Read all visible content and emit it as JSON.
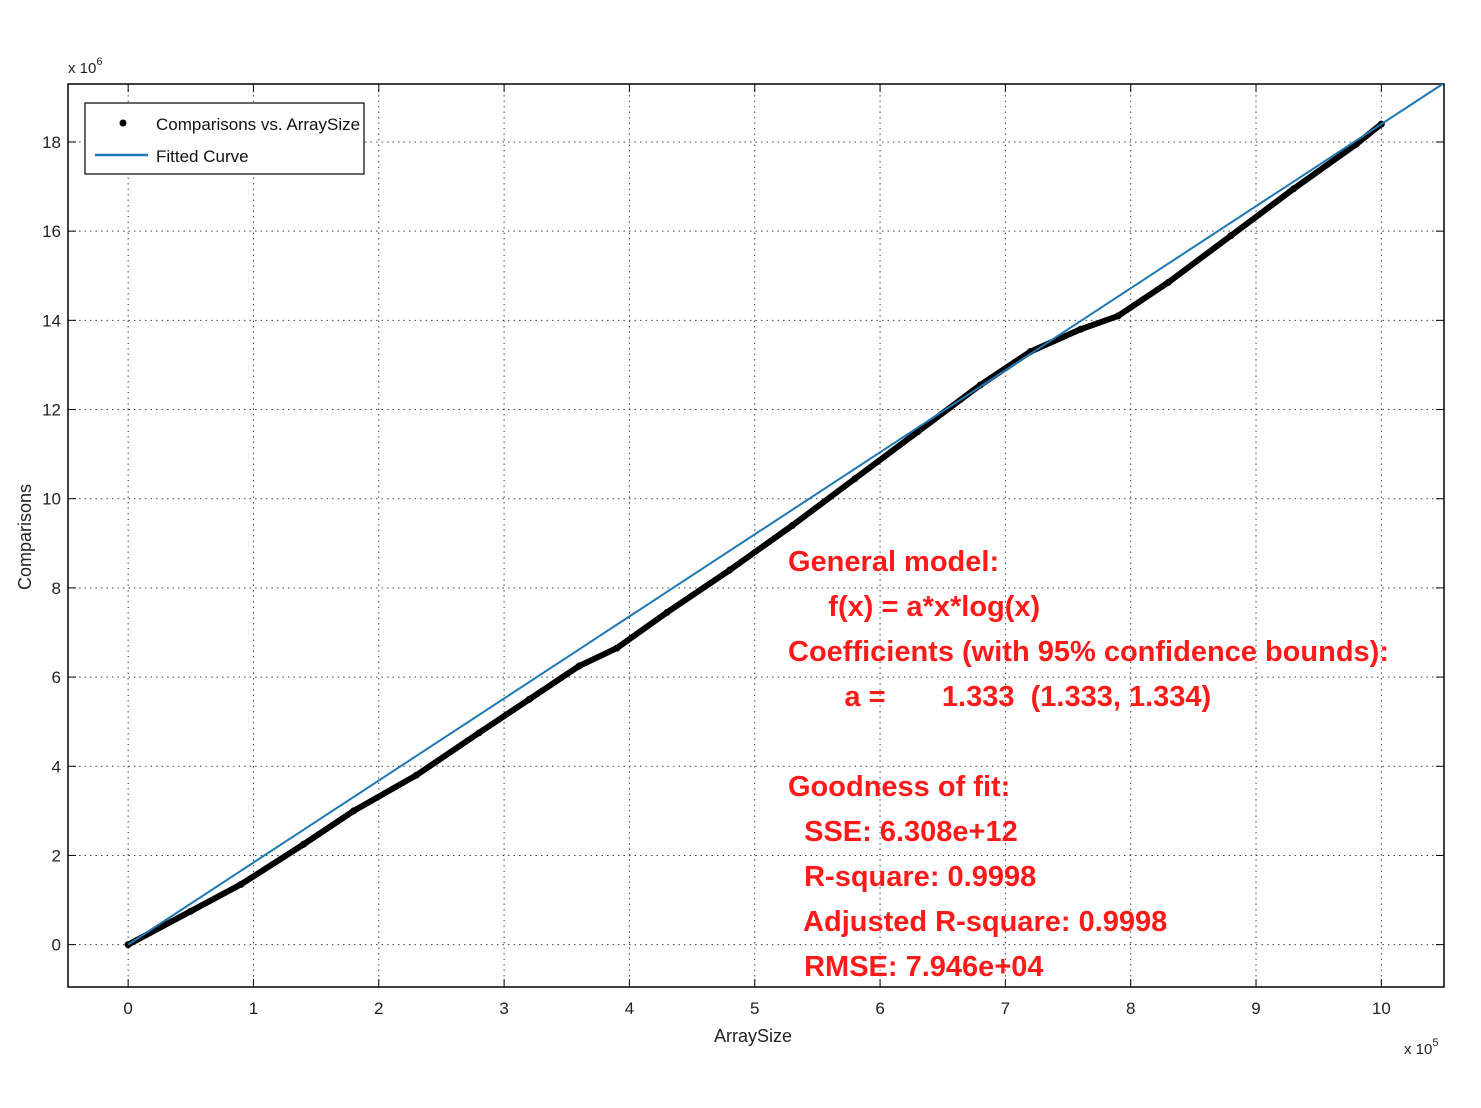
{
  "chart_data": {
    "type": "line",
    "xlabel": "ArraySize",
    "ylabel": "Comparisons",
    "x_multiplier": {
      "base": "x 10",
      "exponent": "5"
    },
    "y_multiplier": {
      "base": "x 10",
      "exponent": "6"
    },
    "xlim": [
      -0.48,
      10.5
    ],
    "ylim": [
      -0.95,
      19.3
    ],
    "x_ticks": [
      "0",
      "1",
      "2",
      "3",
      "4",
      "5",
      "6",
      "7",
      "8",
      "9",
      "10"
    ],
    "y_ticks": [
      "0",
      "2",
      "4",
      "6",
      "8",
      "10",
      "12",
      "14",
      "16",
      "18"
    ],
    "grid": true,
    "legend_position": "top-left",
    "series": [
      {
        "name": "Comparisons vs. ArraySize",
        "style": "markers",
        "color": "#000000",
        "x": [
          0,
          0.5,
          0.9,
          1.4,
          1.8,
          2.3,
          2.8,
          3.2,
          3.6,
          3.9,
          4.3,
          4.8,
          5.3,
          5.8,
          6.3,
          6.8,
          7.2,
          7.6,
          7.9,
          8.3,
          8.8,
          9.3,
          9.8,
          10
        ],
        "y": [
          0,
          0.75,
          1.35,
          2.25,
          3.0,
          3.8,
          4.75,
          5.5,
          6.25,
          6.65,
          7.45,
          8.4,
          9.4,
          10.45,
          11.5,
          12.55,
          13.3,
          13.8,
          14.1,
          14.85,
          15.9,
          16.95,
          17.95,
          18.4
        ]
      },
      {
        "name": "Fitted Curve",
        "style": "line",
        "color": "#1f77b4",
        "model": "a*x*log(x)",
        "a": 1.333,
        "x_range": [
          0,
          10.5
        ]
      }
    ]
  },
  "annotation": {
    "lines": [
      "General model:",
      "     f(x) = a*x*log(x)",
      "Coefficients (with 95% confidence bounds):",
      "       a =       1.333  (1.333, 1.334)",
      "",
      "Goodness of fit:",
      "  SSE: 6.308e+12",
      "  R-square: 0.9998",
      "  Adjusted R-square: 0.9998",
      "  RMSE: 7.946e+04"
    ],
    "color": "#ff1a1a"
  }
}
